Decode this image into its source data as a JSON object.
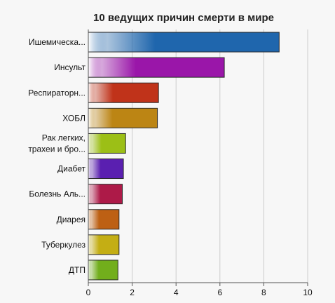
{
  "chart_data": {
    "type": "bar",
    "orientation": "horizontal",
    "title": "10 ведущих причин смерти в мире",
    "xlabel": "",
    "ylabel": "",
    "xlim": [
      0,
      10
    ],
    "x_ticks": [
      "0",
      "2",
      "4",
      "6",
      "8",
      "10"
    ],
    "grid": true,
    "categories": [
      [
        "Ишемическа..."
      ],
      [
        "Инсульт"
      ],
      [
        "Респираторн..."
      ],
      [
        "ХОБЛ"
      ],
      [
        "Рак легких,",
        "трахеи и бро..."
      ],
      [
        "Диабет"
      ],
      [
        "Болезнь Аль..."
      ],
      [
        "Диарея"
      ],
      [
        "Туберкулез"
      ],
      [
        "ДТП"
      ]
    ],
    "values": [
      8.7,
      6.2,
      3.2,
      3.15,
      1.7,
      1.6,
      1.55,
      1.4,
      1.4,
      1.35
    ],
    "colors": [
      "#1f66ad",
      "#9a16a9",
      "#c0331a",
      "#bc8514",
      "#9cbf16",
      "#5a1fb0",
      "#ad1a48",
      "#bd6014",
      "#c4ae14",
      "#72ae1c"
    ]
  }
}
